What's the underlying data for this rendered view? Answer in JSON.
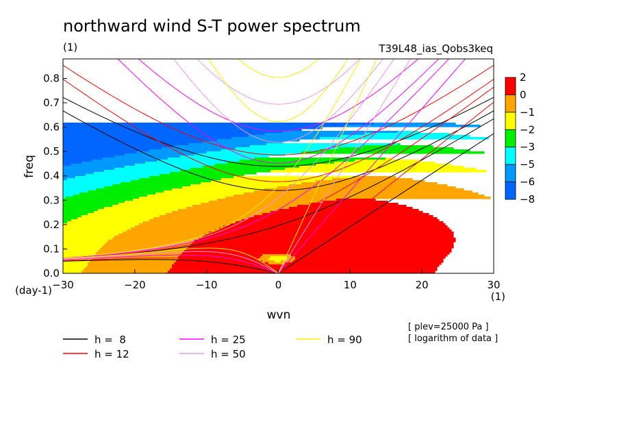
{
  "chart_data": {
    "type": "heatmap",
    "title": "northward wind S-T power spectrum",
    "subtitle_left": "(1)",
    "subtitle_right": "T39L48_ias_Qobs3keq",
    "xlabel": "wvn",
    "ylabel": "freq",
    "x_unit_label": "(1)",
    "y_unit_label": "(day-1)",
    "xlim": [
      -30,
      30
    ],
    "ylim": [
      0,
      0.88
    ],
    "x_ticks": [
      -30,
      -20,
      -10,
      0,
      10,
      20,
      30
    ],
    "x_tick_labels": [
      "−30",
      "−20",
      "−10",
      "0",
      "10",
      "20",
      "30"
    ],
    "y_ticks": [
      0,
      0.1,
      0.2,
      0.3,
      0.4,
      0.5,
      0.6,
      0.7,
      0.8
    ],
    "y_tick_labels": [
      "0.0",
      "0.1",
      "0.2",
      "0.3",
      "0.4",
      "0.5",
      "0.6",
      "0.7",
      "0.8"
    ],
    "notes": [
      "[ plev=25000 Pa ]",
      "[ logarithm of data ]"
    ],
    "colorbar": {
      "levels": [
        2,
        0,
        -1,
        -2,
        -3,
        -5,
        -6,
        -8
      ],
      "level_labels": [
        "2",
        "0",
        "−1",
        "−2",
        "−3",
        "−5",
        "−6",
        "−8"
      ],
      "colors": [
        "#ff0000",
        "#ffa500",
        "#ffff00",
        "#00ee00",
        "#00ffff",
        "#0099ff",
        "#0066ff"
      ]
    },
    "field_levels": [
      -2.4,
      -1.5,
      -0.5,
      0.5,
      1.5,
      2.5
    ],
    "field_colors": [
      "#0066ff",
      "#0099ff",
      "#00ffff",
      "#00ee00",
      "#ffff00",
      "#ffa500",
      "#ff0000"
    ],
    "dispersion_curves": [
      {
        "label": "h =  8",
        "h": 8,
        "color": "#000000"
      },
      {
        "label": "h = 12",
        "h": 12,
        "color": "#ff0000"
      },
      {
        "label": "h = 25",
        "h": 25,
        "color": "#ff00ff"
      },
      {
        "label": "h = 50",
        "h": 50,
        "color": "#ee99ee"
      },
      {
        "label": "h = 90",
        "h": 90,
        "color": "#ffee00"
      }
    ]
  }
}
